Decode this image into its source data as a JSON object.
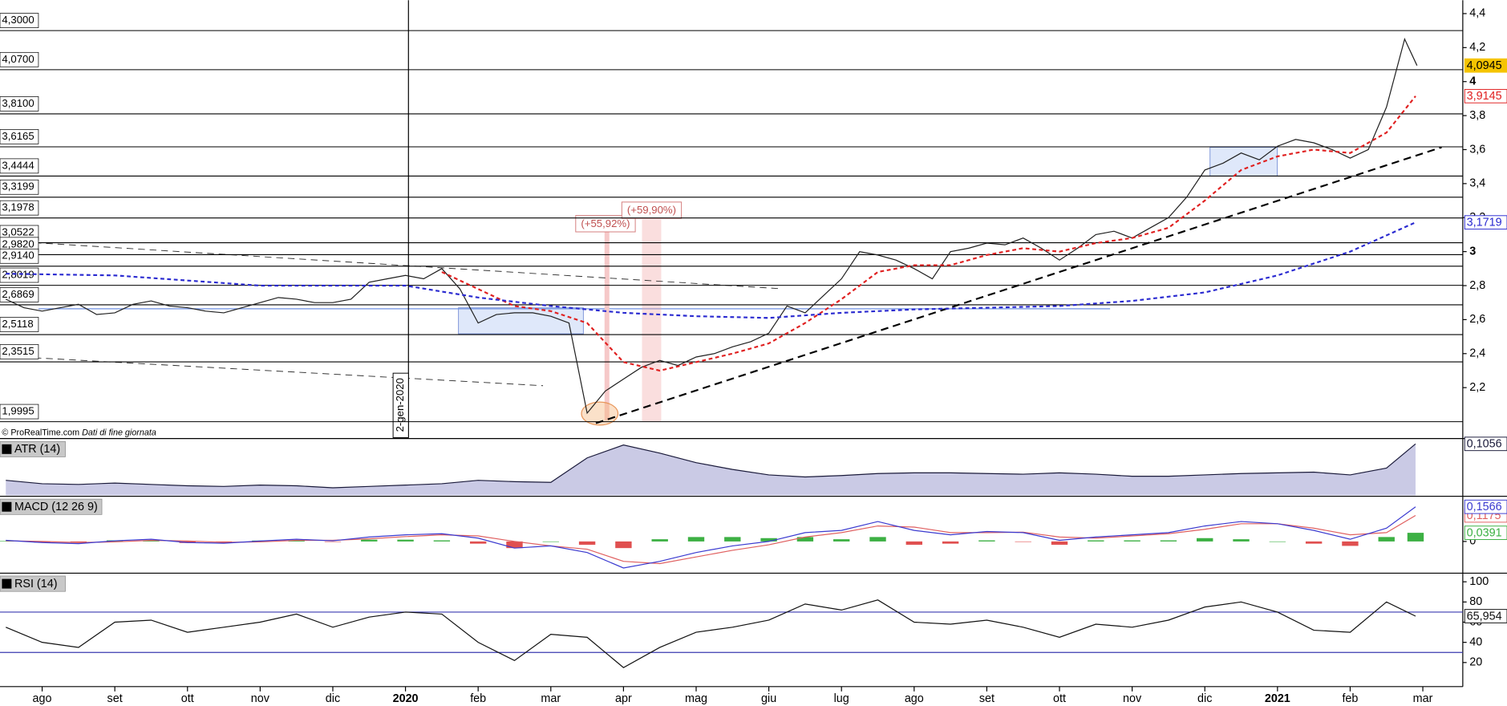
{
  "chart_data": [
    {
      "type": "line",
      "xlim": [
        -0.58,
        19.55
      ],
      "ylim": [
        1.906,
        4.479
      ],
      "yticks": [
        {
          "value": 2.2,
          "label": "2,2"
        },
        {
          "value": 2.4,
          "label": "2,4"
        },
        {
          "value": 2.6,
          "label": "2,6"
        },
        {
          "value": 2.8,
          "label": "2,8"
        },
        3,
        {
          "value": 3.2,
          "label": "3,2"
        },
        {
          "value": 3.4,
          "label": "3,4"
        },
        {
          "value": 3.6,
          "label": "3,6"
        },
        {
          "value": 3.8,
          "label": "3,8"
        },
        4,
        {
          "value": 4.2,
          "label": "4,2"
        },
        {
          "value": 4.4,
          "label": "4,4"
        }
      ],
      "levels": [
        {
          "value": 4.3,
          "label": "4,3000"
        },
        {
          "value": 4.07,
          "label": "4,0700"
        },
        {
          "value": 3.81,
          "label": "3,8100"
        },
        {
          "value": 3.6165,
          "label": "3,6165"
        },
        {
          "value": 3.4444,
          "label": "3,4444"
        },
        {
          "value": 3.3199,
          "label": "3,3199"
        },
        {
          "value": 3.1978,
          "label": "3,1978"
        },
        {
          "value": 3.0522,
          "label": "3,0522"
        },
        {
          "value": 2.982,
          "label": "2,9820"
        },
        {
          "value": 2.914,
          "label": "2,9140"
        },
        {
          "value": 2.8019,
          "label": "2,8019"
        },
        {
          "value": 2.6869,
          "label": "2,6869"
        },
        {
          "value": 2.5118,
          "label": "2,5118"
        },
        {
          "value": 2.3515,
          "label": "2,3515"
        },
        {
          "value": 1.9995,
          "label": "1,9995"
        }
      ],
      "annotations": [
        "(+55,92%)",
        "(+59,90%)"
      ],
      "marker_label": "2-gen-2020",
      "source": "© ProRealTime.com",
      "source_note": "Dati di fine giornata",
      "series": [
        {
          "color": "#1f1f1f",
          "label_fill": "#f5c400",
          "last_label": "4,0945",
          "x": [
            -0.5,
            -0.25,
            0,
            0.25,
            0.5,
            0.75,
            1,
            1.25,
            1.5,
            1.75,
            2,
            2.25,
            2.5,
            2.75,
            3,
            3.25,
            3.5,
            3.75,
            4,
            4.25,
            4.5,
            4.75,
            5,
            5.25,
            5.5,
            5.75,
            6,
            6.25,
            6.5,
            6.75,
            7,
            7.25,
            7.5,
            7.75,
            8,
            8.25,
            8.5,
            8.75,
            9,
            9.25,
            9.5,
            9.75,
            10,
            10.25,
            10.5,
            10.75,
            11,
            11.25,
            11.5,
            11.75,
            12,
            12.25,
            12.5,
            12.75,
            13,
            13.25,
            13.5,
            13.75,
            14,
            14.25,
            14.5,
            14.75,
            15,
            15.25,
            15.5,
            15.75,
            16,
            16.25,
            16.5,
            16.75,
            17,
            17.25,
            17.5,
            17.75,
            18,
            18.25,
            18.5,
            18.75,
            18.92
          ],
          "values": [
            2.72,
            2.67,
            2.65,
            2.67,
            2.69,
            2.63,
            2.64,
            2.69,
            2.71,
            2.68,
            2.67,
            2.65,
            2.64,
            2.67,
            2.7,
            2.73,
            2.72,
            2.7,
            2.7,
            2.72,
            2.82,
            2.84,
            2.86,
            2.84,
            2.9,
            2.78,
            2.58,
            2.63,
            2.64,
            2.64,
            2.62,
            2.58,
            2.05,
            2.18,
            2.25,
            2.32,
            2.36,
            2.33,
            2.38,
            2.4,
            2.44,
            2.47,
            2.52,
            2.68,
            2.64,
            2.74,
            2.84,
            3.0,
            2.98,
            2.95,
            2.9,
            2.84,
            3.0,
            3.02,
            3.05,
            3.04,
            3.08,
            3.02,
            2.95,
            3.02,
            3.1,
            3.12,
            3.08,
            3.14,
            3.2,
            3.32,
            3.48,
            3.52,
            3.58,
            3.54,
            3.62,
            3.66,
            3.64,
            3.6,
            3.55,
            3.6,
            3.85,
            4.25,
            4.0945
          ]
        },
        {
          "color": "#e02020",
          "dash": true,
          "last_label": "3,9145",
          "x": [
            5.5,
            6,
            6.5,
            7,
            7.5,
            8,
            8.5,
            9,
            9.5,
            10,
            10.5,
            11,
            11.5,
            12,
            12.5,
            13,
            13.5,
            14,
            14.5,
            15,
            15.5,
            16,
            16.5,
            17,
            17.5,
            18,
            18.5,
            18.9
          ],
          "values": [
            2.88,
            2.78,
            2.68,
            2.65,
            2.58,
            2.35,
            2.3,
            2.35,
            2.4,
            2.46,
            2.58,
            2.72,
            2.88,
            2.92,
            2.92,
            2.98,
            3.02,
            3.0,
            3.05,
            3.08,
            3.14,
            3.3,
            3.48,
            3.56,
            3.6,
            3.58,
            3.7,
            3.9145
          ]
        },
        {
          "color": "#2a2ad0",
          "dash": true,
          "last_label": "3,1719",
          "x": [
            -0.5,
            1,
            2,
            3,
            4,
            5,
            6,
            7,
            8,
            9,
            10,
            11,
            12,
            13,
            14,
            15,
            16,
            17,
            18,
            18.9
          ],
          "values": [
            2.87,
            2.86,
            2.83,
            2.8,
            2.8,
            2.8,
            2.73,
            2.68,
            2.64,
            2.62,
            2.61,
            2.64,
            2.66,
            2.67,
            2.68,
            2.71,
            2.76,
            2.86,
            3.0,
            3.1719
          ]
        }
      ]
    },
    {
      "type": "area",
      "title": "ATR (14)",
      "xlim": [
        -0.58,
        19.55
      ],
      "ylim": [
        0.03,
        0.112
      ],
      "x": [
        -0.5,
        0,
        0.5,
        1,
        1.5,
        2,
        2.5,
        3,
        3.5,
        4,
        4.5,
        5,
        5.5,
        6,
        6.5,
        7,
        7.5,
        8,
        8.5,
        9,
        9.5,
        10,
        10.5,
        11,
        11.5,
        12,
        12.5,
        13,
        13.5,
        14,
        14.5,
        15,
        15.5,
        16,
        16.5,
        17,
        17.5,
        18,
        18.5,
        18.9
      ],
      "series": [
        {
          "color": "#1a1a3a",
          "fill": "#c4c4e2",
          "last_label": "0,1056",
          "values": [
            0.052,
            0.047,
            0.046,
            0.048,
            0.046,
            0.044,
            0.043,
            0.045,
            0.044,
            0.041,
            0.043,
            0.045,
            0.047,
            0.052,
            0.05,
            0.049,
            0.085,
            0.104,
            0.092,
            0.078,
            0.068,
            0.06,
            0.057,
            0.059,
            0.062,
            0.063,
            0.063,
            0.062,
            0.061,
            0.063,
            0.061,
            0.058,
            0.058,
            0.06,
            0.062,
            0.063,
            0.064,
            0.06,
            0.07,
            0.1056
          ]
        }
      ]
    },
    {
      "type": "line",
      "title": "MACD (12 26 9)",
      "xlim": [
        -0.58,
        19.55
      ],
      "ylim": [
        -0.139,
        0.2
      ],
      "yticks": [
        0
      ],
      "x": [
        -0.5,
        0,
        0.5,
        1,
        1.5,
        2,
        2.5,
        3,
        3.5,
        4,
        4.5,
        5,
        5.5,
        6,
        6.5,
        7,
        7.5,
        8,
        8.5,
        9,
        9.5,
        10,
        10.5,
        11,
        11.5,
        12,
        12.5,
        13,
        13.5,
        14,
        14.5,
        15,
        15.5,
        16,
        16.5,
        17,
        17.5,
        18,
        18.5,
        18.9
      ],
      "series": [
        {
          "type": "bar",
          "color": "#3cb043",
          "negative_color": "#e05050",
          "last_label": "0,0391",
          "values": [
            0.002,
            -0.005,
            -0.005,
            0.005,
            0.005,
            -0.007,
            -0.004,
            0.004,
            0.005,
            -0.002,
            0.008,
            0.008,
            0.005,
            -0.01,
            -0.03,
            0.0,
            -0.015,
            -0.03,
            0.01,
            0.02,
            0.02,
            0.015,
            0.02,
            0.01,
            0.02,
            -0.015,
            -0.01,
            0.005,
            -0.002,
            -0.015,
            0.005,
            0.005,
            0.005,
            0.015,
            0.01,
            0.0,
            -0.01,
            -0.02,
            0.02,
            0.0391
          ]
        },
        {
          "color": "#e06060",
          "last_label": "0,1175",
          "values": [
            0.003,
            0,
            -0.005,
            -0.002,
            0.005,
            0.002,
            -0.004,
            -0.002,
            0.005,
            0.005,
            0.012,
            0.022,
            0.03,
            0.025,
            0.0,
            -0.02,
            -0.035,
            -0.09,
            -0.1,
            -0.07,
            -0.04,
            -0.015,
            0.02,
            0.04,
            0.07,
            0.065,
            0.04,
            0.04,
            0.042,
            0.02,
            0.015,
            0.025,
            0.035,
            0.055,
            0.08,
            0.08,
            0.06,
            0.03,
            0.04,
            0.1175
          ]
        },
        {
          "color": "#3a3ad0",
          "last_label": "0,1566",
          "values": [
            0.005,
            -0.005,
            -0.01,
            0.003,
            0.01,
            -0.005,
            -0.008,
            0.002,
            0.01,
            0.003,
            0.02,
            0.03,
            0.035,
            0.015,
            -0.03,
            -0.02,
            -0.05,
            -0.12,
            -0.09,
            -0.05,
            -0.02,
            0.0,
            0.04,
            0.05,
            0.09,
            0.05,
            0.03,
            0.045,
            0.04,
            0.005,
            0.02,
            0.03,
            0.04,
            0.07,
            0.09,
            0.08,
            0.05,
            0.01,
            0.06,
            0.1566
          ]
        }
      ]
    },
    {
      "type": "line",
      "title": "RSI (14)",
      "xlim": [
        -0.58,
        19.55
      ],
      "ylim": [
        -2.9,
        107.6
      ],
      "yticks": [
        20,
        40,
        60,
        80,
        100
      ],
      "hlines": [
        70,
        30
      ],
      "xticks": [
        {
          "value": 0,
          "label": "ago"
        },
        {
          "value": 1,
          "label": "set"
        },
        {
          "value": 2,
          "label": "ott"
        },
        {
          "value": 3,
          "label": "nov"
        },
        {
          "value": 4,
          "label": "dic"
        },
        {
          "value": 5,
          "label": "2020"
        },
        {
          "value": 6,
          "label": "feb"
        },
        {
          "value": 7,
          "label": "mar"
        },
        {
          "value": 8,
          "label": "apr"
        },
        {
          "value": 9,
          "label": "mag"
        },
        {
          "value": 10,
          "label": "giu"
        },
        {
          "value": 11,
          "label": "lug"
        },
        {
          "value": 12,
          "label": "ago"
        },
        {
          "value": 13,
          "label": "set"
        },
        {
          "value": 14,
          "label": "ott"
        },
        {
          "value": 15,
          "label": "nov"
        },
        {
          "value": 16,
          "label": "dic"
        },
        {
          "value": 17,
          "label": "2021"
        },
        {
          "value": 18,
          "label": "feb"
        },
        {
          "value": 19,
          "label": "mar"
        }
      ],
      "x": [
        -0.5,
        0,
        0.5,
        1,
        1.5,
        2,
        2.5,
        3,
        3.5,
        4,
        4.5,
        5,
        5.5,
        6,
        6.5,
        7,
        7.5,
        8,
        8.5,
        9,
        9.5,
        10,
        10.5,
        11,
        11.5,
        12,
        12.5,
        13,
        13.5,
        14,
        14.5,
        15,
        15.5,
        16,
        16.5,
        17,
        17.5,
        18,
        18.5,
        18.9
      ],
      "series": [
        {
          "color": "#111111",
          "last_label": "65,954",
          "values": [
            55,
            40,
            35,
            60,
            62,
            50,
            55,
            60,
            68,
            55,
            65,
            70,
            68,
            40,
            22,
            48,
            45,
            15,
            35,
            50,
            55,
            62,
            78,
            72,
            82,
            60,
            58,
            62,
            55,
            45,
            58,
            55,
            62,
            75,
            80,
            70,
            52,
            50,
            80,
            65.954
          ]
        }
      ]
    }
  ]
}
